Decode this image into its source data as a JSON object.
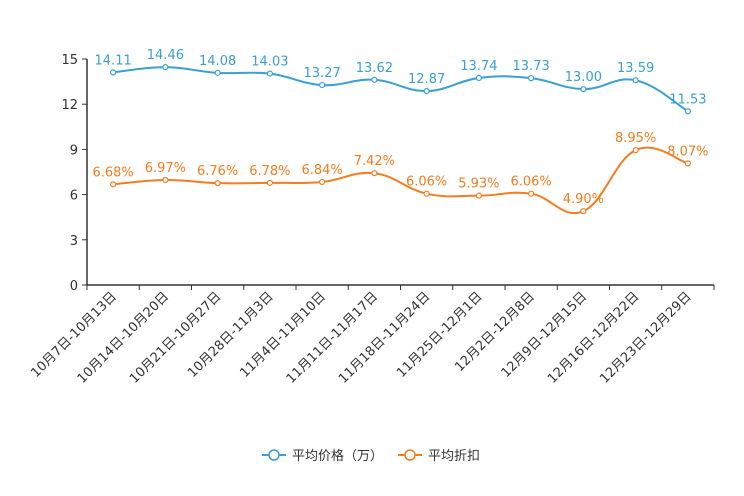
{
  "chart_data": {
    "type": "line",
    "categories": [
      "10月7日-10月13日",
      "10月14日-10月20日",
      "10月21日-10月27日",
      "10月28日-11月3日",
      "11月4日-11月10日",
      "11月11日-11月17日",
      "11月18日-11月24日",
      "11月25日-12月1日",
      "12月2日-12月8日",
      "12月9日-12月15日",
      "12月16日-12月22日",
      "12月23日-12月29日"
    ],
    "series": [
      {
        "name": "平均价格（万）",
        "color": "#3a9fd2",
        "values": [
          14.11,
          14.46,
          14.08,
          14.03,
          13.27,
          13.62,
          12.87,
          13.74,
          13.73,
          13.0,
          13.59,
          11.53
        ],
        "labels": [
          "14.11",
          "14.46",
          "14.08",
          "14.03",
          "13.27",
          "13.62",
          "12.87",
          "13.74",
          "13.73",
          "13.00",
          "13.59",
          "11.53"
        ]
      },
      {
        "name": "平均折扣",
        "color": "#f57c1f",
        "values": [
          6.68,
          6.97,
          6.76,
          6.78,
          6.84,
          7.42,
          6.06,
          5.93,
          6.06,
          4.9,
          8.95,
          8.07
        ],
        "labels": [
          "6.68%",
          "6.97%",
          "6.76%",
          "6.78%",
          "6.84%",
          "7.42%",
          "6.06%",
          "5.93%",
          "6.06%",
          "4.90%",
          "8.95%",
          "8.07%"
        ]
      }
    ],
    "yticks": [
      0,
      3,
      6,
      9,
      12,
      15
    ],
    "ylim": [
      0,
      15
    ],
    "title": "",
    "xlabel": "",
    "ylabel": "",
    "legend_position": "bottom-center",
    "axis_color": "#333333"
  }
}
